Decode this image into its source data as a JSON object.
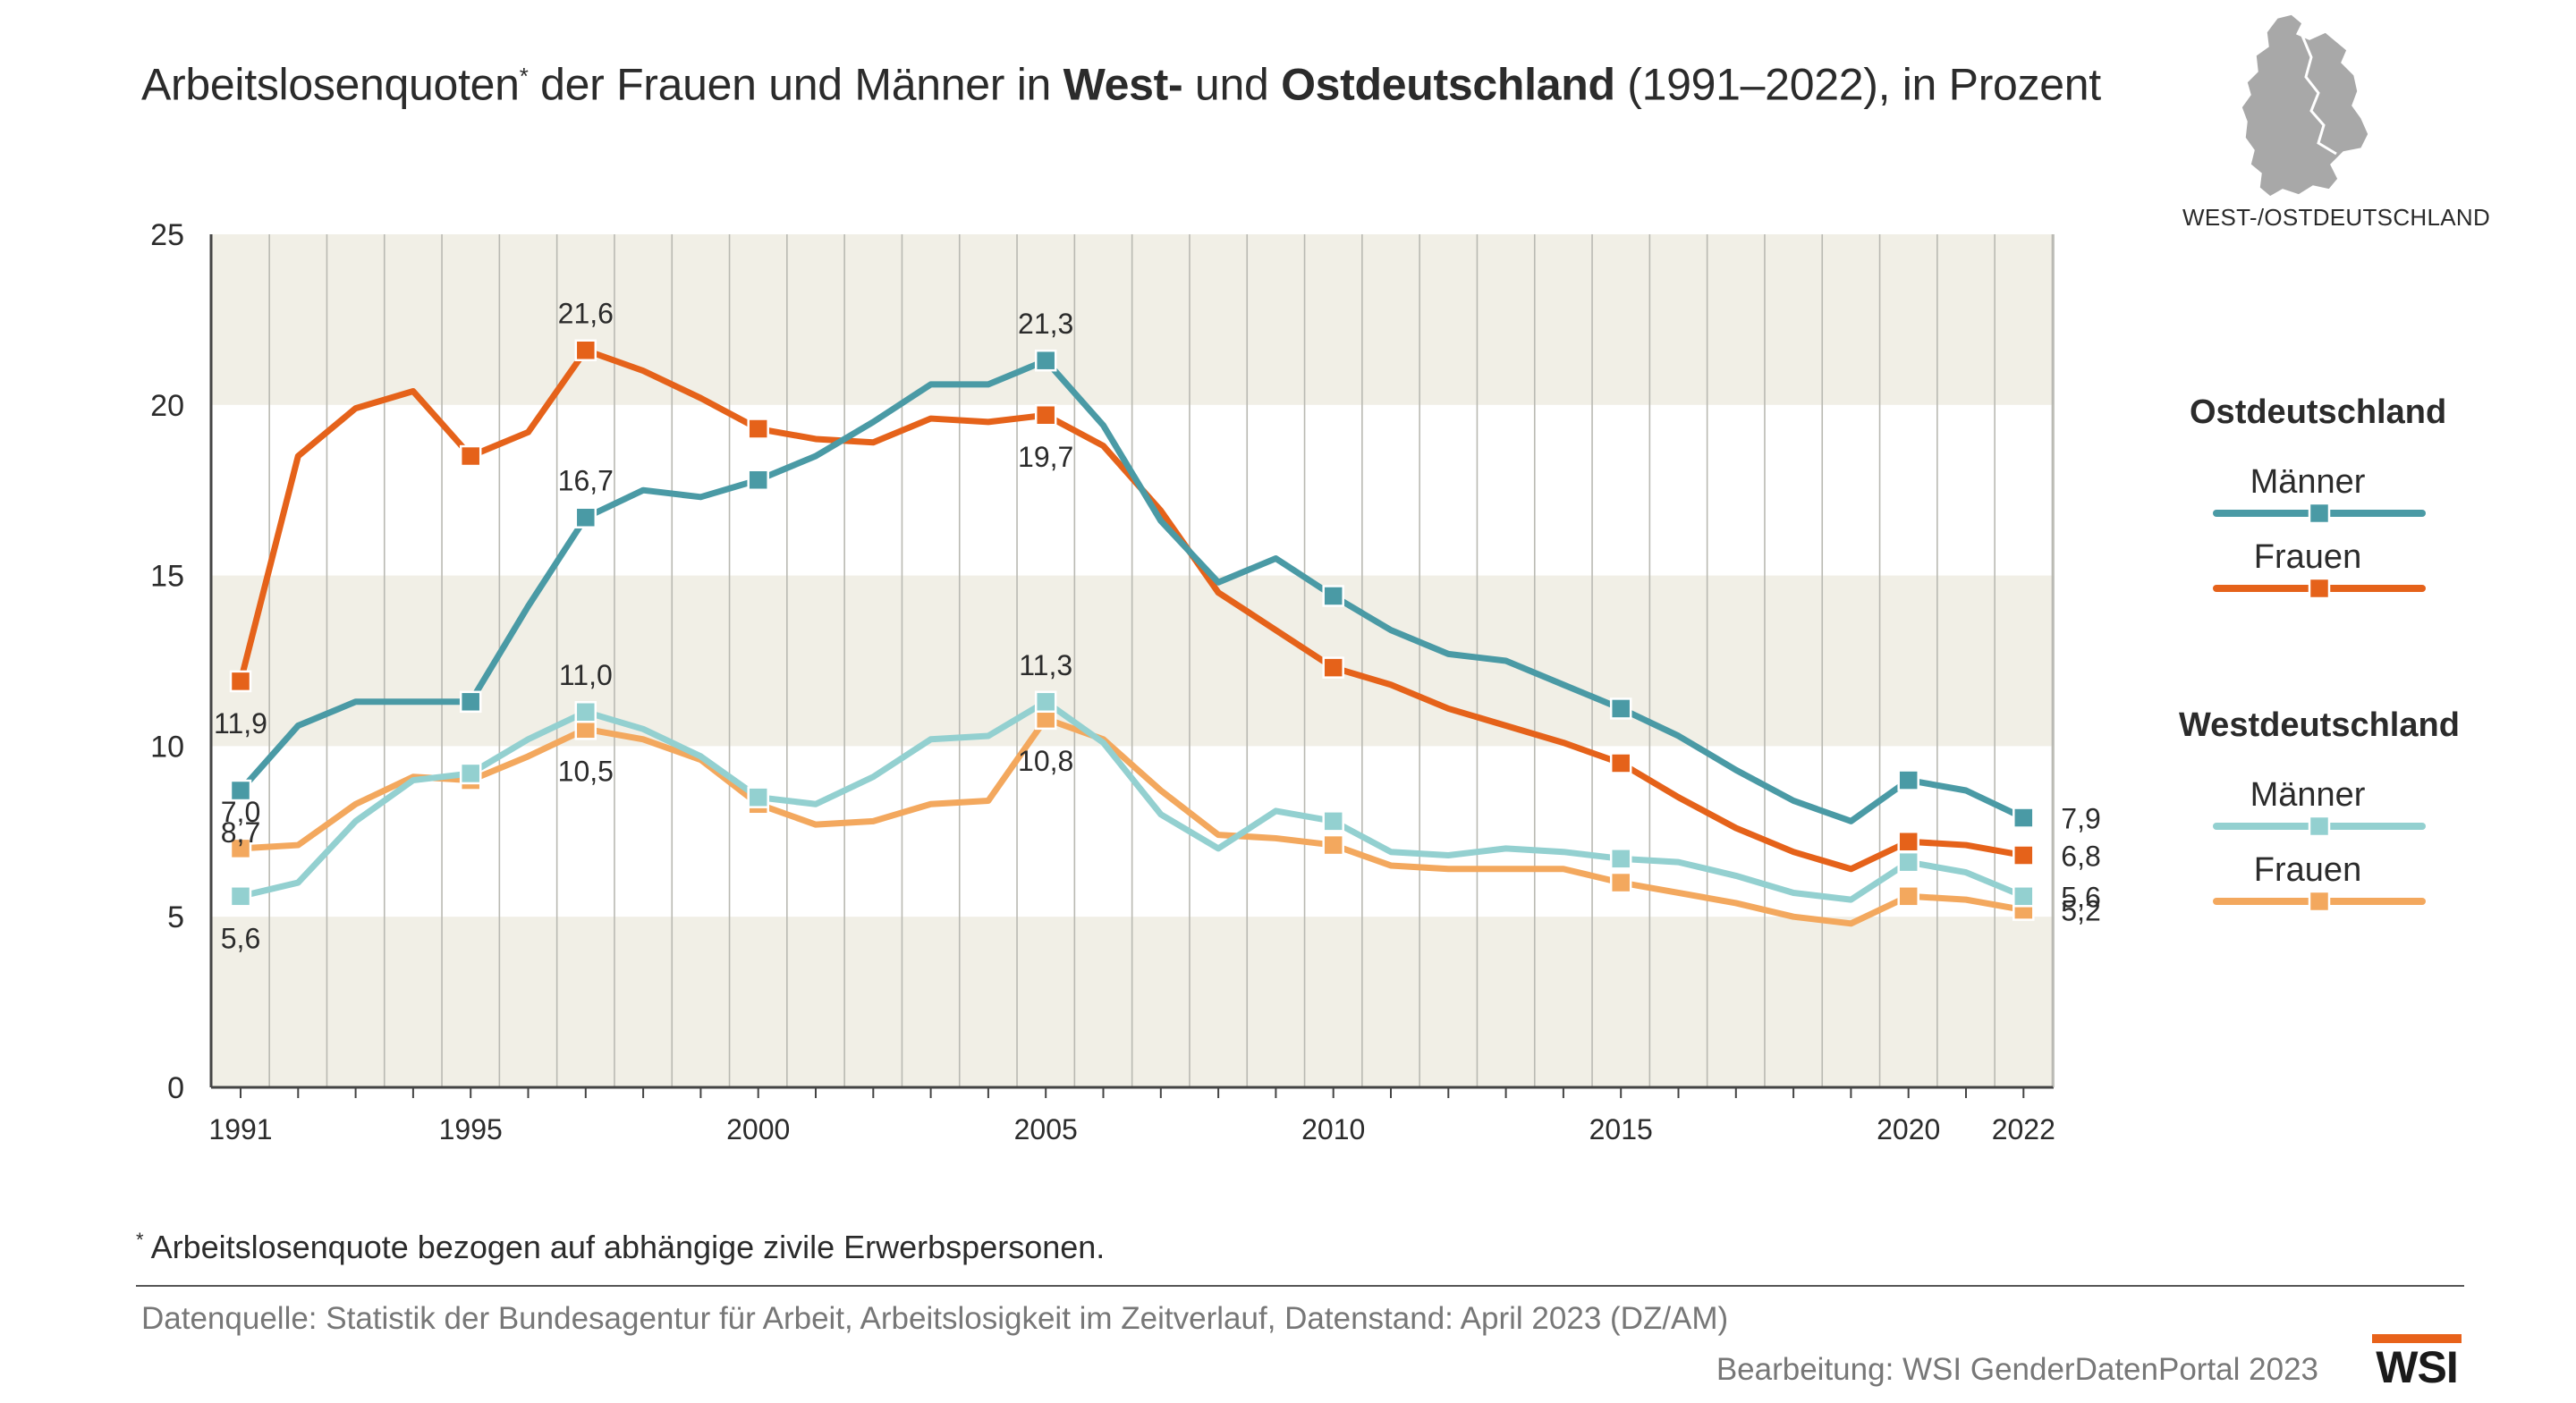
{
  "title": {
    "part1": "Arbeitslosenquoten",
    "footnote_mark": "*",
    "part2": " der Frauen und Männer in ",
    "bold1": "West-",
    "part3": " und ",
    "bold2": "Ostdeutschland",
    "part4": " (1991–2022), in Prozent"
  },
  "map": {
    "label": "WEST-/OSTDEUTSCHLAND",
    "icon": "germany-map-icon"
  },
  "legend": {
    "east_heading": "Ostdeutschland",
    "west_heading": "Westdeutschland",
    "maenner": "Männer",
    "frauen": "Frauen"
  },
  "footnote": {
    "mark": "*",
    "text": " Arbeitslosenquote bezogen auf abhängige zivile Erwerbspersonen."
  },
  "source": "Datenquelle: Statistik der Bundesagentur für Arbeit, Arbeitslosigkeit im Zeitverlauf, Datenstand: April 2023 (DZ/AM)",
  "credit": "Bearbeitung: WSI GenderDatenPortal 2023",
  "logo": "WSI",
  "colors": {
    "ost_maenner": "#4a9aa5",
    "ost_frauen": "#e5621a",
    "west_maenner": "#93d0d0",
    "west_frauen": "#f3a85e",
    "band": "#f1efe6",
    "gridline": "#b9b9b2",
    "axis": "#444444",
    "text": "#2b2b2b",
    "map": "#a8a8a8"
  },
  "chart_data": {
    "type": "line",
    "title": "Arbeitslosenquoten* der Frauen und Männer in West- und Ostdeutschland (1991–2022), in Prozent",
    "xlabel": "",
    "ylabel": "",
    "ylim": [
      0,
      25
    ],
    "yticks": [
      0,
      5,
      10,
      15,
      20,
      25
    ],
    "x": [
      1991,
      1992,
      1993,
      1994,
      1995,
      1996,
      1997,
      1998,
      1999,
      2000,
      2001,
      2002,
      2003,
      2004,
      2005,
      2006,
      2007,
      2008,
      2009,
      2010,
      2011,
      2012,
      2013,
      2014,
      2015,
      2016,
      2017,
      2018,
      2019,
      2020,
      2021,
      2022
    ],
    "xtick_labels": [
      "1991",
      "1995",
      "2000",
      "2005",
      "2010",
      "2015",
      "2020",
      "2022"
    ],
    "xtick_years": [
      1991,
      1995,
      2000,
      2005,
      2010,
      2015,
      2020,
      2022
    ],
    "marker_years": [
      1991,
      1995,
      1997,
      2000,
      2005,
      2010,
      2015,
      2020,
      2022
    ],
    "grid": "vertical lines per year, alternating horizontal bands",
    "legend_position": "right",
    "series": [
      {
        "name": "Ostdeutschland Frauen",
        "group": "Ostdeutschland",
        "label": "Frauen",
        "color_key": "ost_frauen",
        "values": [
          11.9,
          18.5,
          19.9,
          20.4,
          18.5,
          19.2,
          21.6,
          21.0,
          20.2,
          19.3,
          19.0,
          18.9,
          19.6,
          19.5,
          19.7,
          18.8,
          16.9,
          14.5,
          13.4,
          12.3,
          11.8,
          11.1,
          10.6,
          10.1,
          9.5,
          8.5,
          7.6,
          6.9,
          6.4,
          7.2,
          7.1,
          6.8
        ],
        "annotations": [
          {
            "x": 1991,
            "text": "11,9",
            "pos": "below"
          },
          {
            "x": 1997,
            "text": "21,6",
            "pos": "above"
          },
          {
            "x": 2005,
            "text": "19,7",
            "pos": "below"
          },
          {
            "x": 2022,
            "text": "6,8",
            "pos": "right"
          }
        ]
      },
      {
        "name": "Ostdeutschland Männer",
        "group": "Ostdeutschland",
        "label": "Männer",
        "color_key": "ost_maenner",
        "values": [
          8.7,
          10.6,
          11.3,
          11.3,
          11.3,
          14.1,
          16.7,
          17.5,
          17.3,
          17.8,
          18.5,
          19.5,
          20.6,
          20.6,
          21.3,
          19.4,
          16.6,
          14.8,
          15.5,
          14.4,
          13.4,
          12.7,
          12.5,
          11.8,
          11.1,
          10.3,
          9.3,
          8.4,
          7.8,
          9.0,
          8.7,
          7.9
        ],
        "annotations": [
          {
            "x": 1991,
            "text": "8,7",
            "pos": "below"
          },
          {
            "x": 1997,
            "text": "16,7",
            "pos": "above"
          },
          {
            "x": 2005,
            "text": "21,3",
            "pos": "above"
          },
          {
            "x": 2022,
            "text": "7,9",
            "pos": "right"
          }
        ]
      },
      {
        "name": "Westdeutschland Männer",
        "group": "Westdeutschland",
        "label": "Männer",
        "color_key": "west_maenner",
        "values": [
          5.6,
          6.0,
          7.8,
          9.0,
          9.2,
          10.2,
          11.0,
          10.5,
          9.7,
          8.5,
          8.3,
          9.1,
          10.2,
          10.3,
          11.3,
          10.1,
          8.0,
          7.0,
          8.1,
          7.8,
          6.9,
          6.8,
          7.0,
          6.9,
          6.7,
          6.6,
          6.2,
          5.7,
          5.5,
          6.6,
          6.3,
          5.6
        ],
        "annotations": [
          {
            "x": 1991,
            "text": "5,6",
            "pos": "below"
          },
          {
            "x": 1997,
            "text": "11,0",
            "pos": "above"
          },
          {
            "x": 2005,
            "text": "11,3",
            "pos": "above"
          },
          {
            "x": 2022,
            "text": "5,6",
            "pos": "right"
          }
        ]
      },
      {
        "name": "Westdeutschland Frauen",
        "group": "Westdeutschland",
        "label": "Frauen",
        "color_key": "west_frauen",
        "values": [
          7.0,
          7.1,
          8.3,
          9.1,
          9.0,
          9.7,
          10.5,
          10.2,
          9.6,
          8.3,
          7.7,
          7.8,
          8.3,
          8.4,
          10.8,
          10.2,
          8.7,
          7.4,
          7.3,
          7.1,
          6.5,
          6.4,
          6.4,
          6.4,
          6.0,
          5.7,
          5.4,
          5.0,
          4.8,
          5.6,
          5.5,
          5.2
        ],
        "annotations": [
          {
            "x": 1991,
            "text": "7,0",
            "pos": "above"
          },
          {
            "x": 1997,
            "text": "10,5",
            "pos": "below"
          },
          {
            "x": 2005,
            "text": "10,8",
            "pos": "below"
          },
          {
            "x": 2022,
            "text": "5,2",
            "pos": "right"
          }
        ]
      }
    ]
  }
}
